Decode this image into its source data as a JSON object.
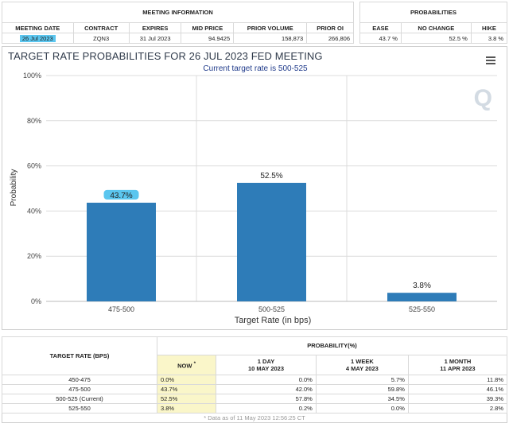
{
  "meeting_info": {
    "section_title": "MEETING INFORMATION",
    "headers": [
      "MEETING DATE",
      "CONTRACT",
      "EXPIRES",
      "MID PRICE",
      "PRIOR VOLUME",
      "PRIOR OI"
    ],
    "row": [
      "26 Jul 2023",
      "ZQN3",
      "31 Jul 2023",
      "94.9425",
      "158,873",
      "266,806"
    ]
  },
  "probabilities": {
    "section_title": "PROBABILITIES",
    "headers": [
      "EASE",
      "NO CHANGE",
      "HIKE"
    ],
    "row": [
      "43.7 %",
      "52.5 %",
      "3.8 %"
    ]
  },
  "chart_panel": {
    "title": "TARGET RATE PROBABILITIES FOR 26 JUL 2023 FED MEETING",
    "subtitle": "Current target rate is 500-525",
    "logo": "Q",
    "menu_icon": "hamburger-menu-icon"
  },
  "chart_data": {
    "type": "bar",
    "categories": [
      "475-500",
      "500-525",
      "525-550"
    ],
    "values": [
      43.7,
      52.5,
      3.8
    ],
    "value_labels": [
      "43.7%",
      "52.5%",
      "3.8%"
    ],
    "xlabel": "Target Rate (in bps)",
    "ylabel": "Probability",
    "ylim": [
      0,
      100
    ],
    "yticks": [
      "0%",
      "20%",
      "40%",
      "60%",
      "80%",
      "100%"
    ],
    "bar_color": "#2e7cb8",
    "highlight_label_color": "#5bc6ef",
    "grid": true
  },
  "bottom_table": {
    "rate_header": "TARGET RATE (BPS)",
    "prob_header": "PROBABILITY(%)",
    "columns": [
      {
        "line1": "NOW",
        "line2": "",
        "mark": "*"
      },
      {
        "line1": "1 DAY",
        "line2": "10 MAY 2023"
      },
      {
        "line1": "1 WEEK",
        "line2": "4 MAY 2023"
      },
      {
        "line1": "1 MONTH",
        "line2": "11 APR 2023"
      }
    ],
    "rows": [
      {
        "rate": "450-475",
        "values": [
          "0.0%",
          "0.0%",
          "5.7%",
          "11.8%"
        ]
      },
      {
        "rate": "475-500",
        "values": [
          "43.7%",
          "42.0%",
          "59.8%",
          "46.1%"
        ]
      },
      {
        "rate": "500-525 (Current)",
        "values": [
          "52.5%",
          "57.8%",
          "34.5%",
          "39.3%"
        ]
      },
      {
        "rate": "525-550",
        "values": [
          "3.8%",
          "0.2%",
          "0.0%",
          "2.8%"
        ]
      }
    ],
    "footnote": "* Data as of 11 May 2023 12:56:25 CT"
  }
}
